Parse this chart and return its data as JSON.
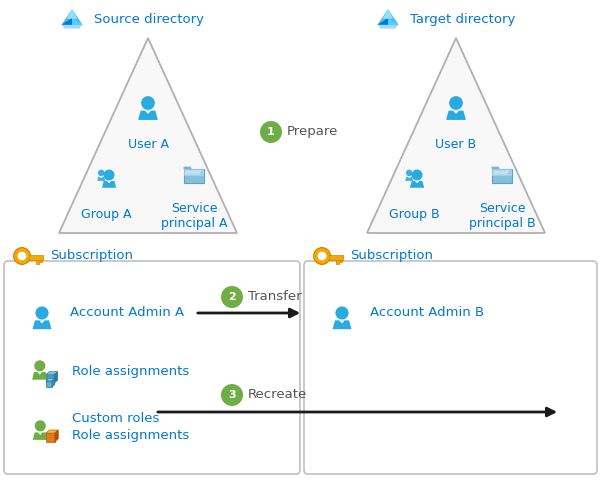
{
  "bg_color": "#ffffff",
  "source_dir_label": "Source directory",
  "target_dir_label": "Target directory",
  "user_a_label": "User A",
  "user_b_label": "User B",
  "group_a_label": "Group A",
  "group_b_label": "Group B",
  "service_a_label": "Service\nprincipal A",
  "service_b_label": "Service\nprincipal B",
  "step1_label": "Prepare",
  "step2_label": "Transfer",
  "step3_label": "Recreate",
  "sub_left_label": "Subscription",
  "sub_right_label": "Subscription",
  "account_admin_a": "Account Admin A",
  "account_admin_b": "Account Admin B",
  "role_assignments": "Role assignments",
  "custom_roles": "Custom roles\nRole assignments",
  "label_color": "#0078d4",
  "step_circle_color": "#70ad47",
  "step_text_color": "#ffffff",
  "arrow_color": "#1a1a1a",
  "box_border_color": "#c0c0c0",
  "key_gold": "#f5a800",
  "key_dark": "#d48000",
  "green_icon": "#70ad47",
  "tri_edge": "#b0b0b0",
  "tri_fill": "#f8f8f8",
  "user_blue": "#29abe2",
  "user_blue_dark": "#1580b0"
}
